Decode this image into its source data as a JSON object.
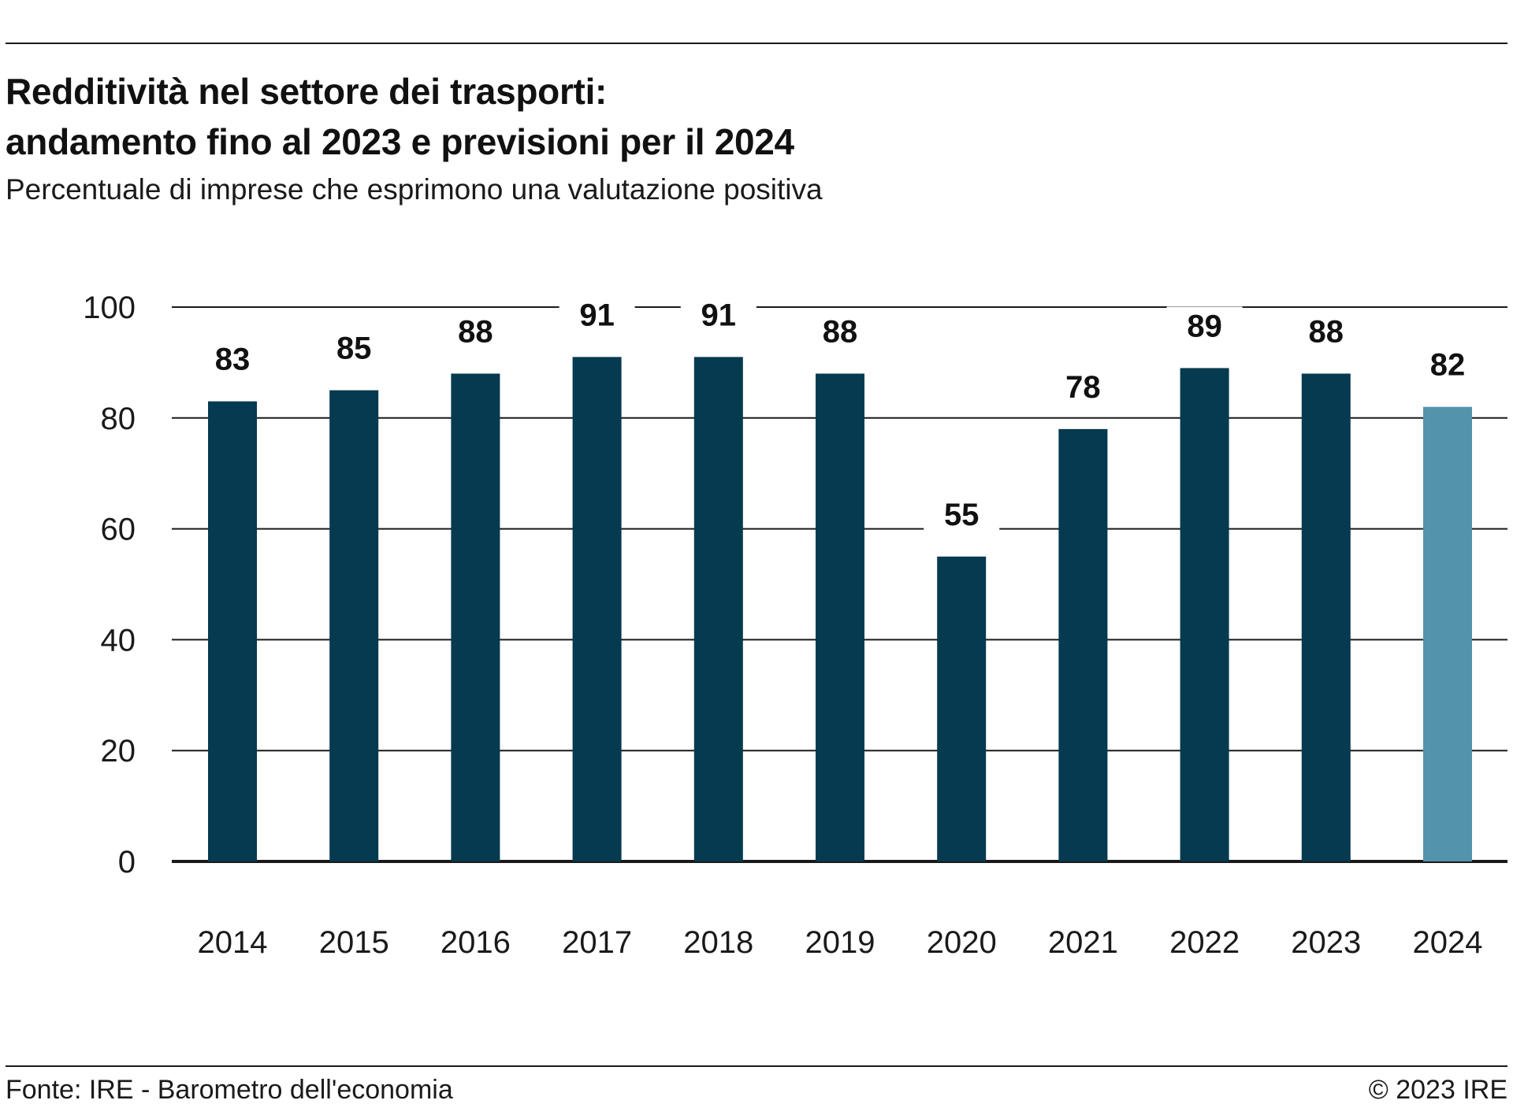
{
  "header": {
    "title_line1": "Redditività nel settore dei trasporti:",
    "title_line2": "andamento fino al 2023 e previsioni per il 2024",
    "subtitle": "Percentuale di imprese che esprimono una valutazione positiva"
  },
  "footer": {
    "source": "Fonte: IRE - Barometro dell'economia",
    "copyright": "© 2023 IRE"
  },
  "chart_data": {
    "type": "bar",
    "categories": [
      "2014",
      "2015",
      "2016",
      "2017",
      "2018",
      "2019",
      "2020",
      "2021",
      "2022",
      "2023",
      "2024"
    ],
    "values": [
      83,
      85,
      88,
      91,
      91,
      88,
      55,
      78,
      89,
      88,
      82
    ],
    "data_labels": [
      "83",
      "85",
      "88",
      "91",
      "91",
      "88",
      "55",
      "78",
      "89",
      "88",
      "82"
    ],
    "title": "Redditività nel settore dei trasporti: andamento fino al 2023 e previsioni per il 2024",
    "subtitle": "Percentuale di imprese che esprimono una valutazione positiva",
    "xlabel": "",
    "ylabel": "",
    "ylim": [
      0,
      100
    ],
    "yticks": [
      0,
      20,
      40,
      60,
      80,
      100
    ],
    "grid": true,
    "colors": {
      "actual": "#053a50",
      "forecast": "#5493ac",
      "gridline": "#1a1a1a"
    },
    "forecast_categories": [
      "2024"
    ]
  }
}
